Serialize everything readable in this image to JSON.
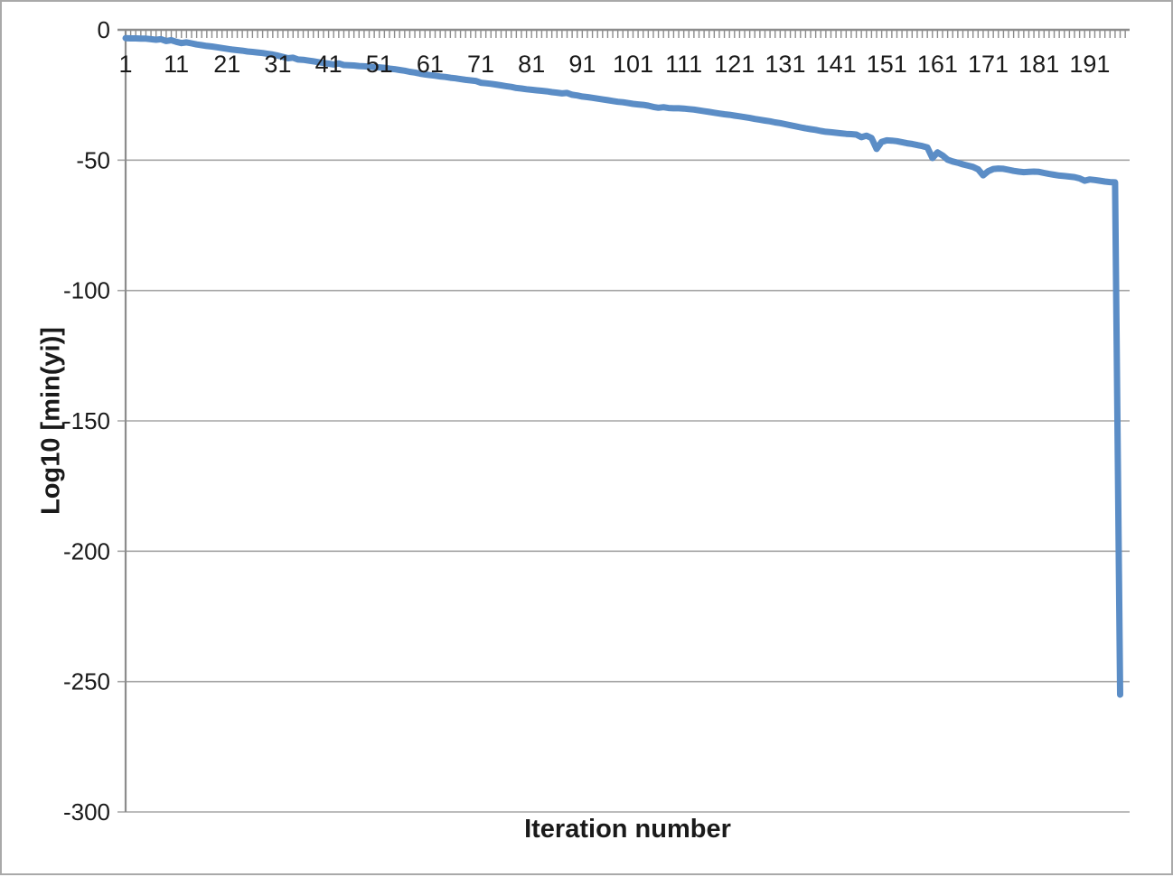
{
  "window": {
    "background_color": "#ffffff",
    "border_color": "#a9a9a9"
  },
  "chart_data": {
    "type": "line",
    "title": "",
    "xlabel": "Iteration number",
    "ylabel": "Log10 [min(yi)]",
    "x_tick_labels": [
      "1",
      "11",
      "21",
      "31",
      "41",
      "51",
      "61",
      "71",
      "81",
      "91",
      "101",
      "111",
      "121",
      "131",
      "141",
      "151",
      "161",
      "171",
      "181",
      "191"
    ],
    "x_tick_step": 10,
    "y_tick_labels": [
      "0",
      "-50",
      "-100",
      "-150",
      "-200",
      "-250",
      "-300"
    ],
    "ylim": [
      -300,
      0
    ],
    "xlim": [
      1,
      198
    ],
    "grid": "horizontal",
    "legend": "none",
    "colors": {
      "series": "#5b8dc6",
      "gridline": "#a6a6a6",
      "axis_line": "#8c8c8c",
      "tick": "#8c8c8c",
      "label_text": "#1a1a1a"
    },
    "series": [
      {
        "name": "min(yi)",
        "x_start": 1,
        "values": [
          -3.2,
          -3.3,
          -3.3,
          -3.4,
          -3.4,
          -3.6,
          -3.8,
          -3.6,
          -4.3,
          -4.0,
          -4.6,
          -5.1,
          -4.8,
          -5.2,
          -5.6,
          -5.9,
          -6.2,
          -6.4,
          -6.7,
          -7.0,
          -7.3,
          -7.6,
          -7.8,
          -8.0,
          -8.3,
          -8.5,
          -8.7,
          -8.9,
          -9.2,
          -9.5,
          -9.9,
          -10.4,
          -10.9,
          -10.7,
          -11.4,
          -11.5,
          -11.8,
          -12.1,
          -12.4,
          -12.7,
          -13.0,
          -13.3,
          -12.9,
          -13.5,
          -13.6,
          -13.7,
          -13.9,
          -14.0,
          -14.1,
          -14.3,
          -14.4,
          -14.6,
          -14.9,
          -15.1,
          -15.4,
          -15.7,
          -16.1,
          -16.4,
          -16.8,
          -17.1,
          -17.4,
          -17.6,
          -17.9,
          -18.1,
          -18.4,
          -18.6,
          -18.9,
          -19.2,
          -19.4,
          -19.6,
          -20.3,
          -20.5,
          -20.7,
          -21.0,
          -21.3,
          -21.6,
          -21.9,
          -22.3,
          -22.5,
          -22.8,
          -23.0,
          -23.2,
          -23.4,
          -23.6,
          -23.9,
          -24.1,
          -24.4,
          -24.2,
          -24.9,
          -25.2,
          -25.6,
          -25.8,
          -26.1,
          -26.4,
          -26.7,
          -27.0,
          -27.3,
          -27.6,
          -27.8,
          -28.1,
          -28.4,
          -28.6,
          -28.8,
          -29.1,
          -29.6,
          -29.9,
          -29.7,
          -30.0,
          -30.1,
          -30.1,
          -30.2,
          -30.4,
          -30.6,
          -30.9,
          -31.2,
          -31.5,
          -31.8,
          -32.1,
          -32.4,
          -32.6,
          -32.9,
          -33.2,
          -33.5,
          -33.8,
          -34.2,
          -34.5,
          -34.8,
          -35.1,
          -35.5,
          -35.8,
          -36.2,
          -36.6,
          -37.0,
          -37.4,
          -37.8,
          -38.1,
          -38.4,
          -38.8,
          -39.1,
          -39.3,
          -39.5,
          -39.7,
          -39.9,
          -40.0,
          -40.2,
          -41.2,
          -40.6,
          -41.5,
          -45.7,
          -43.0,
          -42.4,
          -42.5,
          -42.7,
          -43.1,
          -43.5,
          -43.8,
          -44.2,
          -44.6,
          -45.1,
          -49.2,
          -47.0,
          -48.2,
          -49.8,
          -50.5,
          -51.0,
          -51.6,
          -52.1,
          -52.6,
          -53.5,
          -55.8,
          -54.2,
          -53.4,
          -53.2,
          -53.3,
          -53.7,
          -54.1,
          -54.4,
          -54.6,
          -54.5,
          -54.4,
          -54.5,
          -54.9,
          -55.3,
          -55.6,
          -55.9,
          -56.1,
          -56.3,
          -56.5,
          -57.0,
          -57.9,
          -57.4,
          -57.6,
          -57.9,
          -58.2,
          -58.4,
          -58.5,
          -255
        ]
      }
    ]
  }
}
